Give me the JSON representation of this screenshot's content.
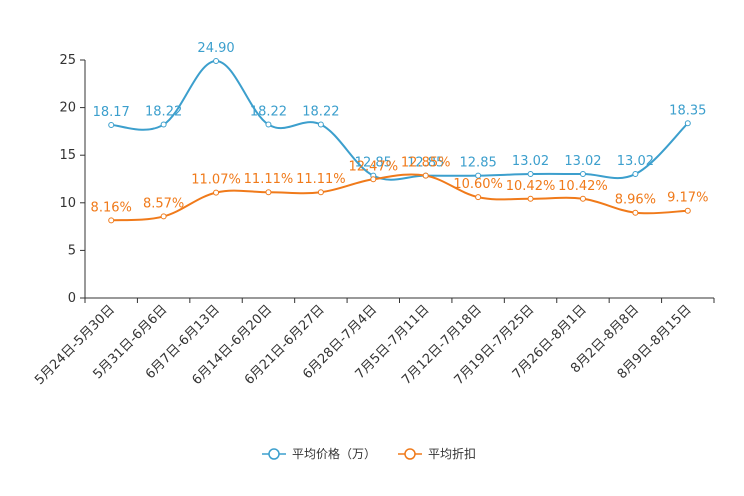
{
  "chart_data": {
    "type": "line",
    "categories": [
      "5月24日-5月30日",
      "5月31日-6月6日",
      "6月7日-6月13日",
      "6月14日-6月20日",
      "6月21日-6月27日",
      "6月28日-7月4日",
      "7月5日-7月11日",
      "7月12日-7月18日",
      "7月19日-7月25日",
      "7月26日-8月1日",
      "8月2日-8月8日",
      "8月9日-8月15日"
    ],
    "ylim": [
      0,
      25
    ],
    "yticks": [
      "0",
      "5",
      "10",
      "15",
      "20",
      "25"
    ],
    "series": [
      {
        "name": "平均价格（万）",
        "color": "#3c9fcd",
        "values": [
          18.17,
          18.22,
          24.9,
          18.22,
          18.22,
          12.85,
          12.85,
          12.85,
          13.02,
          13.02,
          13.02,
          18.35
        ],
        "labels": [
          "18.17",
          "18.22",
          "24.90",
          "18.22",
          "18.22",
          "12.85",
          "12.85",
          "12.85",
          "13.02",
          "13.02",
          "13.02",
          "18.35"
        ]
      },
      {
        "name": "平均折扣",
        "color": "#f07a1a",
        "values": [
          8.16,
          8.57,
          11.07,
          11.11,
          11.11,
          12.47,
          12.85,
          10.6,
          10.42,
          10.42,
          8.96,
          9.17
        ],
        "labels": [
          "8.16%",
          "8.57%",
          "11.07%",
          "11.11%",
          "11.11%",
          "12.47%",
          "12.85%",
          "10.60%",
          "10.42%",
          "10.42%",
          "8.96%",
          "9.17%"
        ]
      }
    ],
    "title": "",
    "xlabel": "",
    "ylabel": "",
    "legend_position": "bottom-center"
  }
}
